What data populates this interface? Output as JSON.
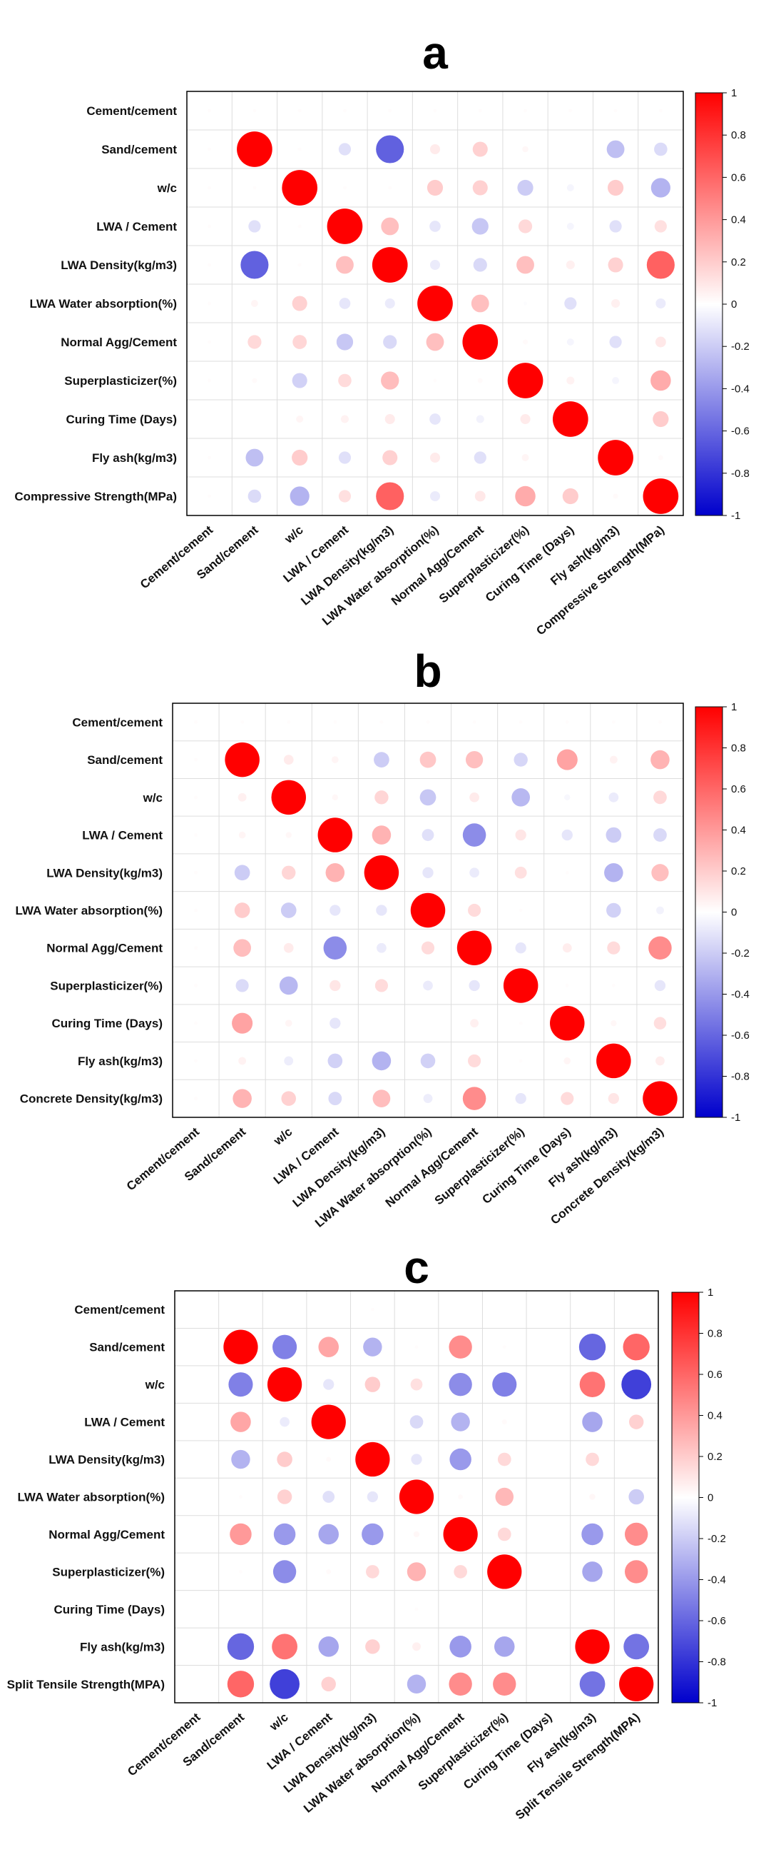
{
  "chart_data": [
    {
      "type": "heatmap",
      "panel": "a",
      "labels": [
        "Cement/cement",
        "Sand/cement",
        "w/c",
        "LWA / Cement",
        "LWA Density(kg/m3)",
        "LWA Water absorption(%)",
        "Normal Agg/Cement",
        "Superplasticizer(%)",
        "Curing Time (Days)",
        "Fly ash(kg/m3)",
        "Compressive Strength(MPa)"
      ],
      "matrix": [
        [
          0.01,
          0.01,
          0.01,
          0.01,
          0.01,
          0.01,
          0.01,
          0.01,
          0.01,
          0.01,
          0.01
        ],
        [
          0.01,
          1,
          0.01,
          -0.12,
          -0.62,
          0.08,
          0.18,
          0.03,
          0,
          -0.25,
          -0.14
        ],
        [
          0.01,
          0.01,
          1,
          0.01,
          0.01,
          0.2,
          0.18,
          -0.2,
          -0.04,
          0.2,
          -0.3
        ],
        [
          0.01,
          -0.12,
          0.01,
          1,
          0.25,
          -0.1,
          -0.22,
          0.15,
          -0.04,
          -0.12,
          0.12
        ],
        [
          0.01,
          -0.62,
          0.01,
          0.25,
          1,
          -0.08,
          -0.15,
          0.25,
          0.06,
          0.18,
          0.62
        ],
        [
          0.01,
          0.04,
          0.18,
          -0.1,
          -0.08,
          1,
          0.25,
          -0.01,
          -0.12,
          0.06,
          -0.08
        ],
        [
          0.01,
          0.15,
          0.16,
          -0.22,
          -0.15,
          0.25,
          1,
          0.02,
          -0.04,
          -0.12,
          0.09
        ],
        [
          0.01,
          0.02,
          -0.18,
          0.14,
          0.26,
          0.01,
          0.02,
          1,
          0.05,
          -0.04,
          0.33
        ],
        [
          0,
          0,
          0.04,
          0.05,
          0.08,
          -0.1,
          -0.05,
          0.08,
          1,
          0,
          0.2
        ],
        [
          0.01,
          -0.25,
          0.2,
          -0.12,
          0.18,
          0.08,
          -0.12,
          0.04,
          0,
          1,
          0.02
        ],
        [
          0.01,
          -0.14,
          -0.3,
          0.12,
          0.62,
          -0.08,
          0.09,
          0.33,
          0.2,
          0.02,
          1
        ]
      ],
      "colorbar": {
        "ticks": [
          "1",
          "0.8",
          "0.6",
          "0.4",
          "0.2",
          "0",
          "-0.2",
          "-0.4",
          "-0.6",
          "-0.8",
          "-1"
        ],
        "range": [
          -1,
          1
        ]
      },
      "colors": {
        "positive": "#ff0000",
        "zero": "#ffffff",
        "negative": "#0000cc"
      }
    },
    {
      "type": "heatmap",
      "panel": "b",
      "labels": [
        "Cement/cement",
        "Sand/cement",
        "w/c",
        "LWA / Cement",
        "LWA Density(kg/m3)",
        "LWA Water absorption(%)",
        "Normal Agg/Cement",
        "Superplasticizer(%)",
        "Curing Time (Days)",
        "Fly ash(kg/m3)",
        "Concrete Density(kg/m3)"
      ],
      "matrix": [
        [
          0.01,
          0.01,
          0.01,
          0.01,
          0.01,
          0.01,
          0.01,
          0.01,
          0.01,
          0.01,
          0.01
        ],
        [
          0.01,
          1,
          0.08,
          0.04,
          -0.2,
          0.22,
          0.25,
          -0.16,
          0.36,
          0.05,
          0.3
        ],
        [
          0.01,
          0.06,
          1,
          0.03,
          0.16,
          -0.22,
          0.08,
          -0.28,
          -0.03,
          -0.08,
          0.15
        ],
        [
          0.01,
          0.04,
          0.03,
          1,
          0.3,
          -0.12,
          -0.45,
          0.1,
          -0.1,
          -0.2,
          -0.15
        ],
        [
          0.01,
          -0.2,
          0.16,
          0.3,
          1,
          -0.1,
          -0.08,
          0.12,
          0.01,
          -0.3,
          0.25
        ],
        [
          0.01,
          0.2,
          -0.2,
          -0.1,
          -0.1,
          1,
          0.14,
          0.01,
          0,
          -0.18,
          -0.05
        ],
        [
          0.01,
          0.26,
          0.08,
          -0.45,
          -0.08,
          0.14,
          1,
          -0.1,
          0.07,
          0.14,
          0.45
        ],
        [
          0.01,
          -0.14,
          -0.28,
          0.1,
          0.14,
          -0.08,
          -0.1,
          1,
          0.01,
          0.01,
          -0.1
        ],
        [
          0.01,
          0.36,
          0.04,
          -0.1,
          0,
          0,
          0.06,
          0.01,
          1,
          0.03,
          0.13
        ],
        [
          0.01,
          0.05,
          -0.07,
          -0.18,
          -0.3,
          -0.18,
          0.14,
          0.01,
          0.04,
          1,
          0.07
        ],
        [
          0.01,
          0.3,
          0.18,
          -0.15,
          0.26,
          -0.07,
          0.45,
          -0.1,
          0.14,
          0.1,
          1
        ]
      ],
      "colorbar": {
        "ticks": [
          "1",
          "0.8",
          "0.6",
          "0.4",
          "0.2",
          "0",
          "-0.2",
          "-0.4",
          "-0.6",
          "-0.8",
          "-1"
        ],
        "range": [
          -1,
          1
        ]
      },
      "colors": {
        "positive": "#ff0000",
        "zero": "#ffffff",
        "negative": "#0000cc"
      }
    },
    {
      "type": "heatmap",
      "panel": "c",
      "labels": [
        "Cement/cement",
        "Sand/cement",
        "w/c",
        "LWA / Cement",
        "LWA Density(kg/m3)",
        "LWA Water absorption(%)",
        "Normal Agg/Cement",
        "Superplasticizer(%)",
        "Curing Time (Days)",
        "Fly ash(kg/m3)",
        "Split Tensile Strength(MPA)"
      ],
      "matrix": [
        [
          0,
          0,
          0,
          0,
          0.01,
          0,
          0,
          0,
          0,
          0,
          0
        ],
        [
          0,
          1,
          -0.5,
          0.35,
          -0.3,
          0.01,
          0.45,
          0.01,
          0,
          -0.6,
          0.6
        ],
        [
          0,
          -0.5,
          1,
          -0.1,
          0.2,
          0.12,
          -0.45,
          -0.5,
          0,
          0.55,
          -0.75
        ],
        [
          0,
          0.35,
          -0.08,
          1,
          0,
          -0.15,
          -0.3,
          0.02,
          0,
          -0.35,
          0.18
        ],
        [
          0,
          -0.3,
          0.2,
          0.02,
          1,
          -0.1,
          -0.4,
          0.15,
          0,
          0.15,
          0
        ],
        [
          0,
          0.01,
          0.18,
          -0.12,
          -0.1,
          1,
          0.02,
          0.28,
          0,
          0.03,
          -0.2
        ],
        [
          0,
          0.4,
          -0.4,
          -0.35,
          -0.4,
          0.03,
          1,
          0.15,
          0,
          -0.4,
          0.45
        ],
        [
          0,
          0.01,
          -0.45,
          0.02,
          0.15,
          0.3,
          0.15,
          1,
          0,
          -0.35,
          0.45
        ],
        [
          0,
          0,
          0,
          0,
          0,
          0.01,
          0,
          0,
          0,
          0,
          0
        ],
        [
          0,
          -0.6,
          0.55,
          -0.35,
          0.18,
          0.06,
          -0.4,
          -0.35,
          0,
          1,
          -0.55
        ],
        [
          0,
          0.6,
          -0.75,
          0.18,
          0,
          -0.3,
          0.45,
          0.45,
          0,
          -0.55,
          1
        ]
      ],
      "colorbar": {
        "ticks": [
          "1",
          "0.8",
          "0.6",
          "0.4",
          "0.2",
          "0",
          "-0.2",
          "-0.4",
          "-0.6",
          "-0.8",
          "-1"
        ],
        "range": [
          -1,
          1
        ]
      },
      "colors": {
        "positive": "#ff0000",
        "zero": "#ffffff",
        "negative": "#0000cc"
      }
    }
  ]
}
